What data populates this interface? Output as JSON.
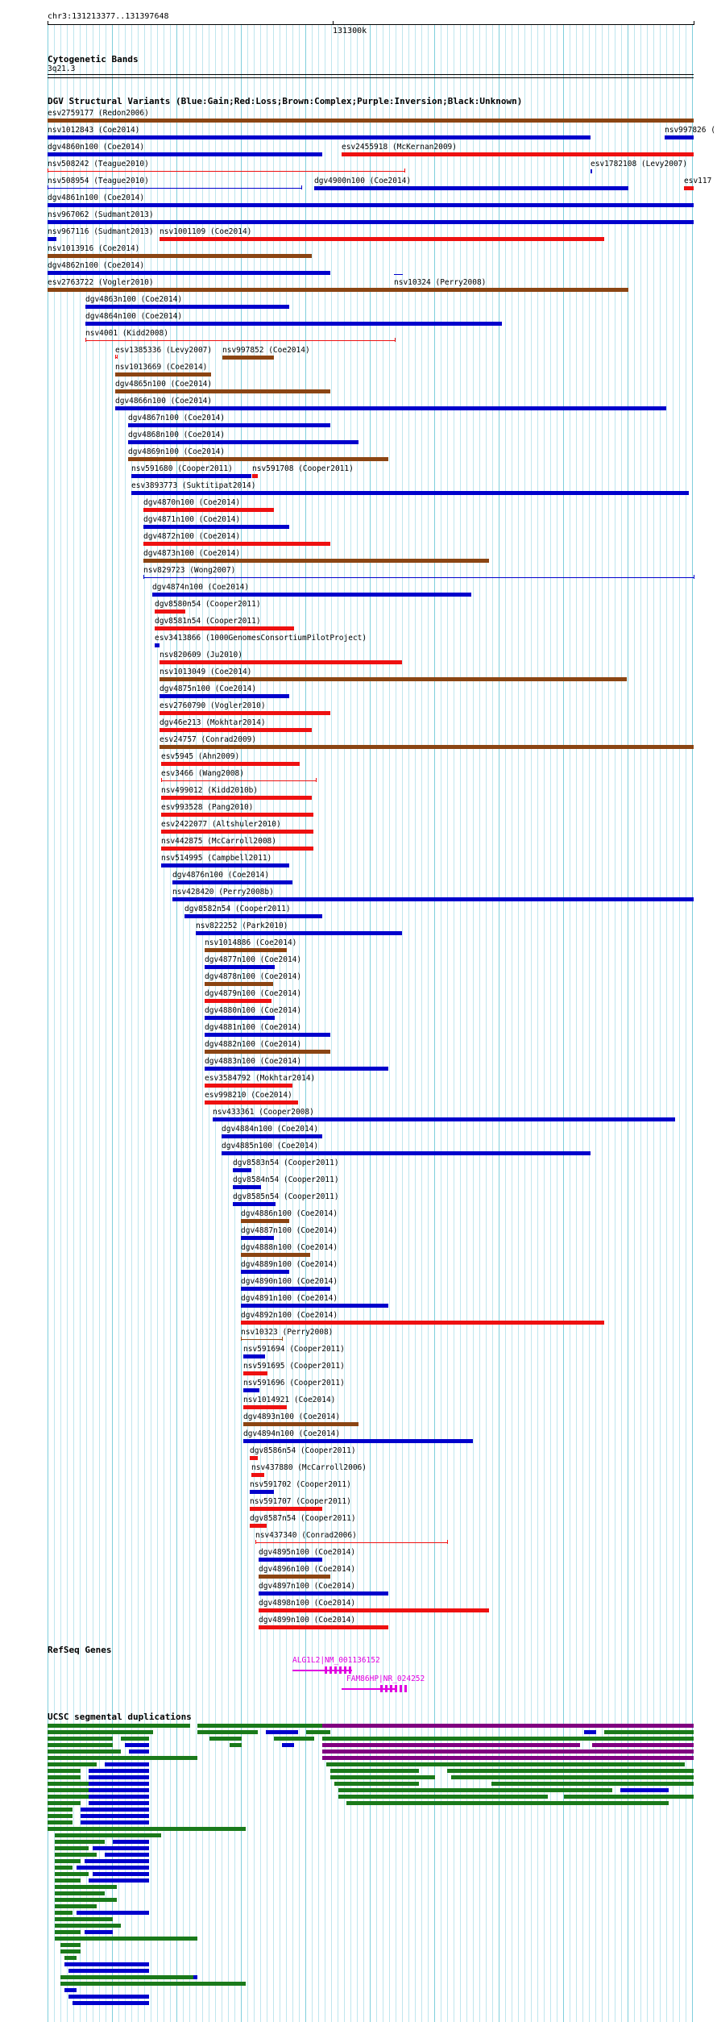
{
  "header": {
    "coords": "chr3:131213377..131397648",
    "scale_label": "131300k"
  },
  "cytoband": {
    "title": "Cytogenetic Bands",
    "band": "3q21.3"
  },
  "dgv": {
    "title": "DGV Structural Variants (Blue:Gain;Red:Loss;Brown:Complex;Purple:Inversion;Black:Unknown)",
    "legend_colors": {
      "gain": "#0000cc",
      "loss": "#ee1111",
      "complex": "#8b4513",
      "inversion": "#800080",
      "unknown": "#000000"
    },
    "features": [
      {
        "label": "esv2759177 (Redon2006)",
        "type": "complex"
      },
      {
        "label": "nsv1012843 (Coe2014)",
        "type": "gain"
      },
      {
        "label": "nsv997826 (",
        "type": "gain"
      },
      {
        "label": "dgv4860n100 (Coe2014)",
        "type": "gain"
      },
      {
        "label": "esv2455918 (McKernan2009)",
        "type": "loss"
      },
      {
        "label": "nsv508242 (Teague2010)",
        "type": "loss"
      },
      {
        "label": "esv1782108 (Levy2007)",
        "type": "gain"
      },
      {
        "label": "nsv508954 (Teague2010)",
        "type": "gain"
      },
      {
        "label": "dgv4900n100 (Coe2014)",
        "type": "gain"
      },
      {
        "label": "esv117",
        "type": "loss"
      },
      {
        "label": "dgv4861n100 (Coe2014)",
        "type": "gain"
      },
      {
        "label": "nsv967062 (Sudmant2013)",
        "type": "gain"
      },
      {
        "label": "nsv967116 (Sudmant2013)",
        "type": "gain"
      },
      {
        "label": "nsv1001109 (Coe2014)",
        "type": "loss"
      },
      {
        "label": "nsv1013916 (Coe2014)",
        "type": "complex"
      },
      {
        "label": "nsv10324 (Perry2008)",
        "type": "gain"
      },
      {
        "label": "dgv4862n100 (Coe2014)",
        "type": "gain"
      },
      {
        "label": "esv2763722 (Vogler2010)",
        "type": "complex"
      },
      {
        "label": "dgv4863n100 (Coe2014)",
        "type": "gain"
      },
      {
        "label": "dgv4864n100 (Coe2014)",
        "type": "gain"
      },
      {
        "label": "nsv4001 (Kidd2008)",
        "type": "loss"
      },
      {
        "label": "esv1385336 (Levy2007)",
        "type": "loss"
      },
      {
        "label": "nsv997852 (Coe2014)",
        "type": "complex"
      },
      {
        "label": "nsv1013669 (Coe2014)",
        "type": "complex"
      },
      {
        "label": "dgv4865n100 (Coe2014)",
        "type": "complex"
      },
      {
        "label": "dgv4866n100 (Coe2014)",
        "type": "gain"
      },
      {
        "label": "dgv4867n100 (Coe2014)",
        "type": "gain"
      },
      {
        "label": "dgv4868n100 (Coe2014)",
        "type": "gain"
      },
      {
        "label": "dgv4869n100 (Coe2014)",
        "type": "complex"
      },
      {
        "label": "nsv591680 (Cooper2011)",
        "type": "gain"
      },
      {
        "label": "nsv591708 (Cooper2011)",
        "type": "loss"
      },
      {
        "label": "esv3893773 (Suktitipat2014)",
        "type": "gain"
      },
      {
        "label": "dgv4870n100 (Coe2014)",
        "type": "loss"
      },
      {
        "label": "dgv4871n100 (Coe2014)",
        "type": "gain"
      },
      {
        "label": "dgv4872n100 (Coe2014)",
        "type": "loss"
      },
      {
        "label": "dgv4873n100 (Coe2014)",
        "type": "complex"
      },
      {
        "label": "nsv829723 (Wong2007)",
        "type": "gain"
      },
      {
        "label": "dgv4874n100 (Coe2014)",
        "type": "gain"
      },
      {
        "label": "dgv8580n54 (Cooper2011)",
        "type": "loss"
      },
      {
        "label": "dgv8581n54 (Cooper2011)",
        "type": "loss"
      },
      {
        "label": "esv3413866 (1000GenomesConsortiumPilotProject)",
        "type": "gain"
      },
      {
        "label": "nsv820609 (Ju2010)",
        "type": "loss"
      },
      {
        "label": "nsv1013049 (Coe2014)",
        "type": "complex"
      },
      {
        "label": "dgv4875n100 (Coe2014)",
        "type": "gain"
      },
      {
        "label": "esv2760790 (Vogler2010)",
        "type": "loss"
      },
      {
        "label": "dgv46e213 (Mokhtar2014)",
        "type": "loss"
      },
      {
        "label": "esv24757 (Conrad2009)",
        "type": "complex"
      },
      {
        "label": "esv5945 (Ahn2009)",
        "type": "loss"
      },
      {
        "label": "esv3466 (Wang2008)",
        "type": "loss"
      },
      {
        "label": "nsv499012 (Kidd2010b)",
        "type": "loss"
      },
      {
        "label": "esv993528 (Pang2010)",
        "type": "loss"
      },
      {
        "label": "esv2422077 (Altshuler2010)",
        "type": "loss"
      },
      {
        "label": "nsv442875 (McCarroll2008)",
        "type": "loss"
      },
      {
        "label": "nsv514995 (Campbell2011)",
        "type": "gain"
      },
      {
        "label": "dgv4876n100 (Coe2014)",
        "type": "gain"
      },
      {
        "label": "nsv428420 (Perry2008b)",
        "type": "gain"
      },
      {
        "label": "dgv8582n54 (Cooper2011)",
        "type": "gain"
      },
      {
        "label": "nsv822252 (Park2010)",
        "type": "gain"
      },
      {
        "label": "nsv1014886 (Coe2014)",
        "type": "complex"
      },
      {
        "label": "dgv4877n100 (Coe2014)",
        "type": "gain"
      },
      {
        "label": "dgv4878n100 (Coe2014)",
        "type": "complex"
      },
      {
        "label": "dgv4879n100 (Coe2014)",
        "type": "loss"
      },
      {
        "label": "dgv4880n100 (Coe2014)",
        "type": "gain"
      },
      {
        "label": "dgv4881n100 (Coe2014)",
        "type": "gain"
      },
      {
        "label": "dgv4882n100 (Coe2014)",
        "type": "complex"
      },
      {
        "label": "dgv4883n100 (Coe2014)",
        "type": "gain"
      },
      {
        "label": "esv3584792 (Mokhtar2014)",
        "type": "loss"
      },
      {
        "label": "esv998210 (Coe2014)",
        "type": "loss"
      },
      {
        "label": "nsv433361 (Cooper2008)",
        "type": "gain"
      },
      {
        "label": "dgv4884n100 (Coe2014)",
        "type": "gain"
      },
      {
        "label": "dgv4885n100 (Coe2014)",
        "type": "gain"
      },
      {
        "label": "dgv8583n54 (Cooper2011)",
        "type": "gain"
      },
      {
        "label": "dgv8584n54 (Cooper2011)",
        "type": "gain"
      },
      {
        "label": "dgv8585n54 (Cooper2011)",
        "type": "gain"
      },
      {
        "label": "dgv4886n100 (Coe2014)",
        "type": "complex"
      },
      {
        "label": "dgv4887n100 (Coe2014)",
        "type": "gain"
      },
      {
        "label": "dgv4888n100 (Coe2014)",
        "type": "complex"
      },
      {
        "label": "dgv4889n100 (Coe2014)",
        "type": "gain"
      },
      {
        "label": "dgv4890n100 (Coe2014)",
        "type": "gain"
      },
      {
        "label": "dgv4891n100 (Coe2014)",
        "type": "gain"
      },
      {
        "label": "dgv4892n100 (Coe2014)",
        "type": "loss"
      },
      {
        "label": "nsv10323 (Perry2008)",
        "type": "complex"
      },
      {
        "label": "nsv591694 (Cooper2011)",
        "type": "gain"
      },
      {
        "label": "nsv591695 (Cooper2011)",
        "type": "loss"
      },
      {
        "label": "nsv591696 (Cooper2011)",
        "type": "gain"
      },
      {
        "label": "nsv1014921 (Coe2014)",
        "type": "loss"
      },
      {
        "label": "dgv4893n100 (Coe2014)",
        "type": "complex"
      },
      {
        "label": "dgv4894n100 (Coe2014)",
        "type": "gain"
      },
      {
        "label": "dgv8586n54 (Cooper2011)",
        "type": "loss"
      },
      {
        "label": "nsv437880 (McCarroll2006)",
        "type": "loss"
      },
      {
        "label": "nsv591702 (Cooper2011)",
        "type": "gain"
      },
      {
        "label": "nsv591707 (Cooper2011)",
        "type": "loss"
      },
      {
        "label": "dgv8587n54 (Cooper2011)",
        "type": "loss"
      },
      {
        "label": "nsv437340 (Conrad2006)",
        "type": "loss"
      },
      {
        "label": "dgv4895n100 (Coe2014)",
        "type": "gain"
      },
      {
        "label": "dgv4896n100 (Coe2014)",
        "type": "complex"
      },
      {
        "label": "dgv4897n100 (Coe2014)",
        "type": "gain"
      },
      {
        "label": "dgv4898n100 (Coe2014)",
        "type": "loss"
      },
      {
        "label": "dgv4899n100 (Coe2014)",
        "type": "loss"
      }
    ]
  },
  "refseq": {
    "title": "RefSeq Genes",
    "genes": [
      {
        "label": "ALG1L2|NM_001136152",
        "color": "#e000e0"
      },
      {
        "label": "FAM86HP|NR_024252",
        "color": "#e000e0"
      }
    ]
  },
  "segdup": {
    "title": "UCSC segmental duplications",
    "colors": {
      "green": "#1a7a1a",
      "blue": "#0000cc",
      "purple": "#800080"
    }
  }
}
